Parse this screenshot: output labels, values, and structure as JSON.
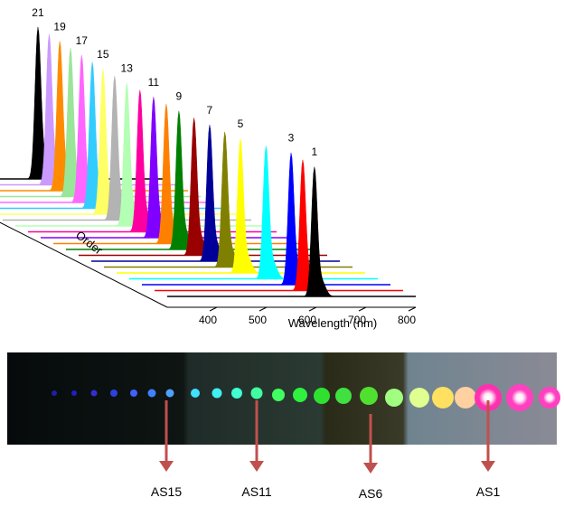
{
  "chart_data": {
    "type": "waterfall",
    "xlabel": "Wavelength (nm)",
    "zlabel": "Order",
    "xlim": [
      300,
      800
    ],
    "xticks": [
      400,
      500,
      600,
      700,
      800
    ],
    "series": [
      {
        "name": "1",
        "color": "#000000",
        "values": [
          596
        ]
      },
      {
        "name": null,
        "color": "#ff0000",
        "values": [
          598
        ]
      },
      {
        "name": "3",
        "color": "#0000ff",
        "values": [
          600
        ]
      },
      {
        "name": null,
        "color": "#00ffff",
        "values": [
          575
        ]
      },
      {
        "name": "5",
        "color": "#ffff00",
        "values": [
          549
        ]
      },
      {
        "name": null,
        "color": "#808000",
        "values": [
          543
        ]
      },
      {
        "name": "7",
        "color": "#000099",
        "values": [
          538
        ]
      },
      {
        "name": null,
        "color": "#990000",
        "values": [
          532
        ]
      },
      {
        "name": "9",
        "color": "#008000",
        "values": [
          527
        ]
      },
      {
        "name": null,
        "color": "#ff8000",
        "values": [
          527
        ]
      },
      {
        "name": "11",
        "color": "#8000ff",
        "values": [
          527
        ]
      },
      {
        "name": null,
        "color": "#ff00a0",
        "values": [
          525
        ]
      },
      {
        "name": "13",
        "color": "#b3ffb3",
        "values": [
          524
        ]
      },
      {
        "name": null,
        "color": "#b3b3b3",
        "values": [
          525
        ]
      },
      {
        "name": "15",
        "color": "#ffff66",
        "values": [
          527
        ]
      },
      {
        "name": null,
        "color": "#33ccff",
        "values": [
          531
        ]
      },
      {
        "name": "17",
        "color": "#ff66ff",
        "values": [
          535
        ]
      },
      {
        "name": null,
        "color": "#99e699",
        "values": [
          538
        ]
      },
      {
        "name": "19",
        "color": "#ff8c00",
        "values": [
          542
        ]
      },
      {
        "name": null,
        "color": "#cc99ff",
        "values": [
          546
        ]
      },
      {
        "name": "21",
        "color": "#000000",
        "values": [
          549
        ]
      }
    ]
  },
  "photo": {
    "labels": [
      "AS15",
      "AS11",
      "AS6",
      "AS1"
    ]
  }
}
